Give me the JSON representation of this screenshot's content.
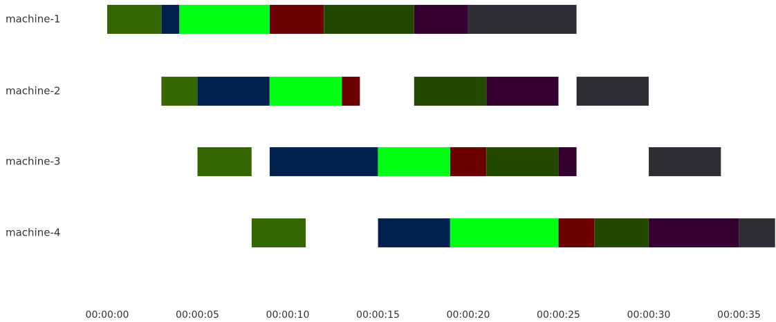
{
  "chart_data": {
    "type": "gantt",
    "x_unit": "seconds",
    "xlim": [
      -0.7,
      37.1
    ],
    "x_ticks": [
      0,
      5,
      10,
      15,
      20,
      25,
      30,
      35
    ],
    "x_tick_labels": [
      "00:00:00",
      "00:00:05",
      "00:00:10",
      "00:00:15",
      "00:00:20",
      "00:00:25",
      "00:00:30",
      "00:00:35"
    ],
    "rows": [
      "machine-1",
      "machine-2",
      "machine-3",
      "machine-4"
    ],
    "job_colors": {
      "job-1": "#356700",
      "job-2": "#00214d",
      "job-3": "#00ff14",
      "job-4": "#6b0000",
      "job-5": "#234900",
      "job-6": "#340030",
      "job-7": "#2e2d33"
    },
    "tasks": [
      {
        "machine": "machine-1",
        "job": "job-1",
        "start": 0,
        "end": 3
      },
      {
        "machine": "machine-1",
        "job": "job-2",
        "start": 3,
        "end": 4
      },
      {
        "machine": "machine-1",
        "job": "job-3",
        "start": 4,
        "end": 9
      },
      {
        "machine": "machine-1",
        "job": "job-4",
        "start": 9,
        "end": 12
      },
      {
        "machine": "machine-1",
        "job": "job-5",
        "start": 12,
        "end": 17
      },
      {
        "machine": "machine-1",
        "job": "job-6",
        "start": 17,
        "end": 20
      },
      {
        "machine": "machine-1",
        "job": "job-7",
        "start": 20,
        "end": 26
      },
      {
        "machine": "machine-2",
        "job": "job-1",
        "start": 3,
        "end": 5
      },
      {
        "machine": "machine-2",
        "job": "job-2",
        "start": 5,
        "end": 9
      },
      {
        "machine": "machine-2",
        "job": "job-3",
        "start": 9,
        "end": 13
      },
      {
        "machine": "machine-2",
        "job": "job-4",
        "start": 13,
        "end": 14
      },
      {
        "machine": "machine-2",
        "job": "job-5",
        "start": 17,
        "end": 21
      },
      {
        "machine": "machine-2",
        "job": "job-6",
        "start": 21,
        "end": 25
      },
      {
        "machine": "machine-2",
        "job": "job-7",
        "start": 26,
        "end": 30
      },
      {
        "machine": "machine-3",
        "job": "job-1",
        "start": 5,
        "end": 8
      },
      {
        "machine": "machine-3",
        "job": "job-2",
        "start": 9,
        "end": 15
      },
      {
        "machine": "machine-3",
        "job": "job-3",
        "start": 15,
        "end": 19
      },
      {
        "machine": "machine-3",
        "job": "job-4",
        "start": 19,
        "end": 21
      },
      {
        "machine": "machine-3",
        "job": "job-5",
        "start": 21,
        "end": 25
      },
      {
        "machine": "machine-3",
        "job": "job-6",
        "start": 25,
        "end": 26
      },
      {
        "machine": "machine-3",
        "job": "job-7",
        "start": 30,
        "end": 34
      },
      {
        "machine": "machine-4",
        "job": "job-1",
        "start": 8,
        "end": 11
      },
      {
        "machine": "machine-4",
        "job": "job-2",
        "start": 15,
        "end": 19
      },
      {
        "machine": "machine-4",
        "job": "job-3",
        "start": 19,
        "end": 25
      },
      {
        "machine": "machine-4",
        "job": "job-4",
        "start": 25,
        "end": 27
      },
      {
        "machine": "machine-4",
        "job": "job-5",
        "start": 27,
        "end": 30
      },
      {
        "machine": "machine-4",
        "job": "job-6",
        "start": 30,
        "end": 35
      },
      {
        "machine": "machine-4",
        "job": "job-7",
        "start": 35,
        "end": 37
      }
    ],
    "grid": false,
    "legend": "none"
  }
}
